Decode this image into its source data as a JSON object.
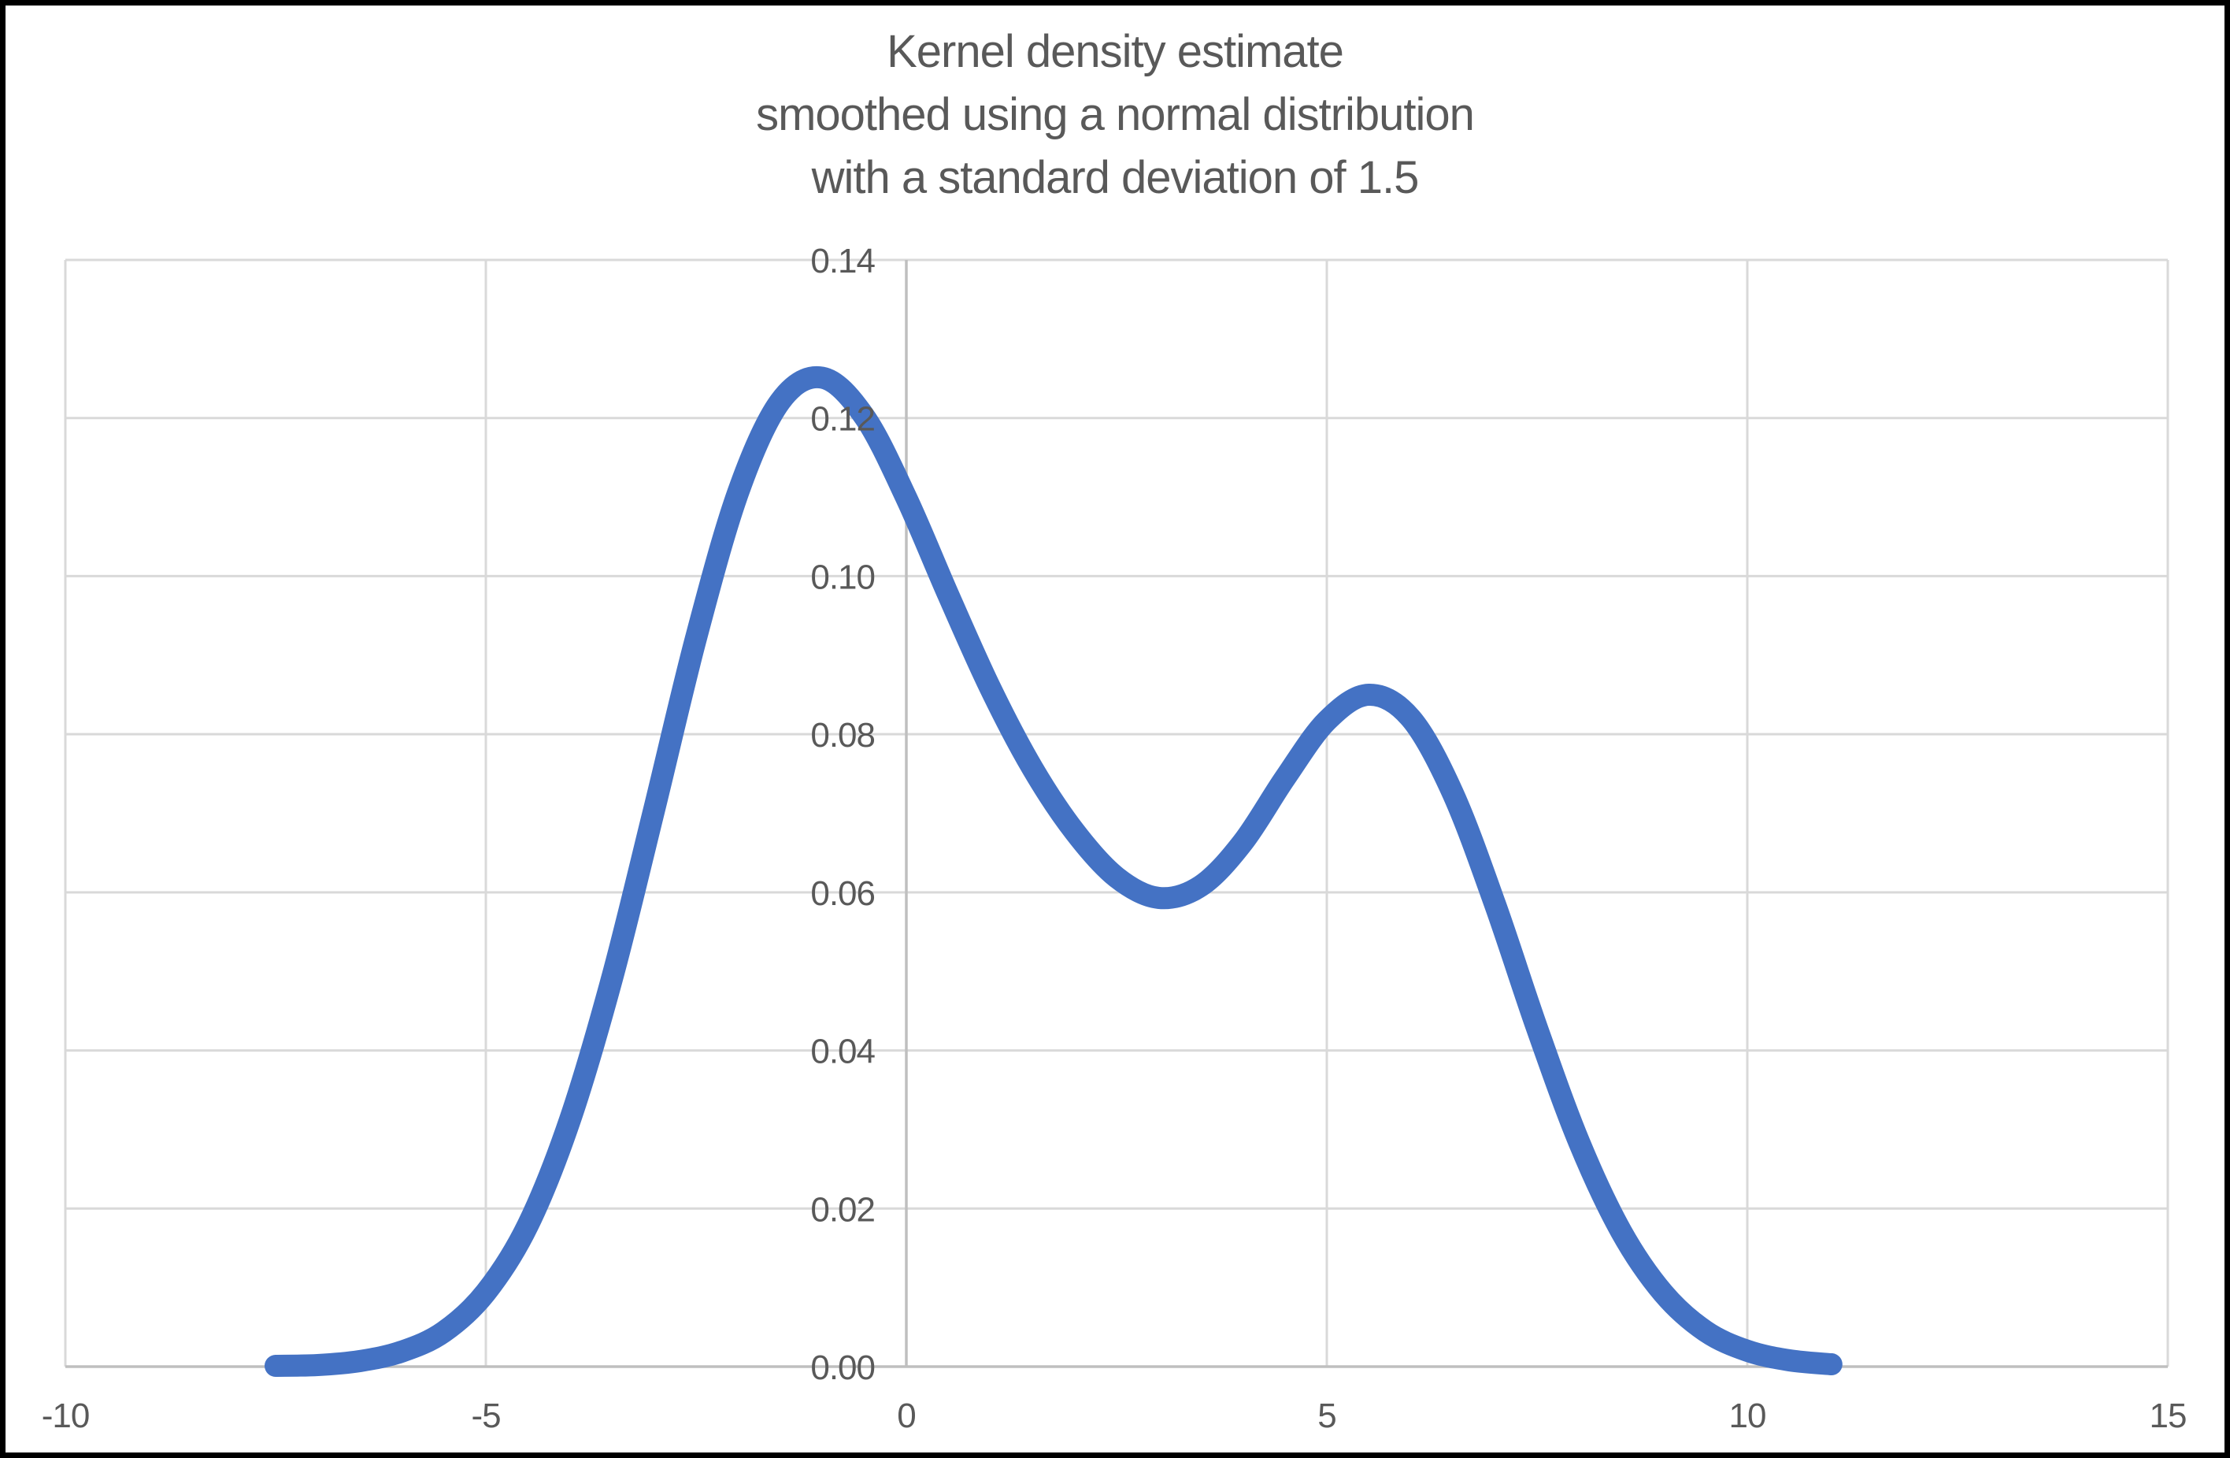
{
  "window": {
    "frame_color": "#000000",
    "background": "#ffffff"
  },
  "title": {
    "lines": [
      "Kernel density estimate",
      "smoothed using a normal distribution",
      "with a standard deviation of 1.5"
    ],
    "color": "#595959"
  },
  "chart_data": {
    "type": "line",
    "title": "Kernel density estimate smoothed using a normal distribution with a standard deviation of 1.5",
    "xlabel": "",
    "ylabel": "",
    "xlim": [
      -10,
      15
    ],
    "ylim": [
      0,
      0.14
    ],
    "x_ticks": [
      -10,
      -5,
      0,
      5,
      10,
      15
    ],
    "x_tick_labels": [
      "-10",
      "-5",
      "0",
      "5",
      "10",
      "15"
    ],
    "y_ticks": [
      0,
      0.02,
      0.04,
      0.06,
      0.08,
      0.1,
      0.12,
      0.14
    ],
    "y_tick_labels": [
      "0.00",
      "0.02",
      "0.04",
      "0.06",
      "0.08",
      "0.10",
      "0.12",
      "0.14"
    ],
    "grid": true,
    "legend": false,
    "smoothing": {
      "kernel": "normal distribution",
      "standard_deviation": 1.5
    },
    "series": [
      {
        "name": "Kernel density estimate",
        "color": "#4472C4",
        "stroke_width": 28,
        "x": [
          -7.5,
          -7,
          -6.5,
          -6,
          -5.5,
          -5,
          -4.5,
          -4,
          -3.5,
          -3,
          -2.5,
          -2,
          -1.5,
          -1,
          -0.5,
          0,
          0.5,
          1,
          1.5,
          2,
          2.5,
          3,
          3.5,
          4,
          4.5,
          5,
          5.5,
          6,
          6.5,
          7,
          7.5,
          8,
          8.5,
          9,
          9.5,
          10,
          10.5,
          11
        ],
        "y": [
          0.0001,
          0.0002,
          0.0007,
          0.0019,
          0.0044,
          0.0094,
          0.0179,
          0.0312,
          0.0491,
          0.0704,
          0.0922,
          0.1106,
          0.1221,
          0.1251,
          0.1202,
          0.1099,
          0.0976,
          0.0858,
          0.0757,
          0.0677,
          0.0619,
          0.0593,
          0.0608,
          0.0663,
          0.0744,
          0.0817,
          0.085,
          0.082,
          0.0725,
          0.0585,
          0.0428,
          0.0284,
          0.0171,
          0.0093,
          0.0045,
          0.002,
          0.0008,
          0.0003
        ]
      }
    ],
    "colors": {
      "gridline": "#D9D9D9",
      "axis_line": "#BFBFBF",
      "tick_label": "#595959"
    }
  }
}
